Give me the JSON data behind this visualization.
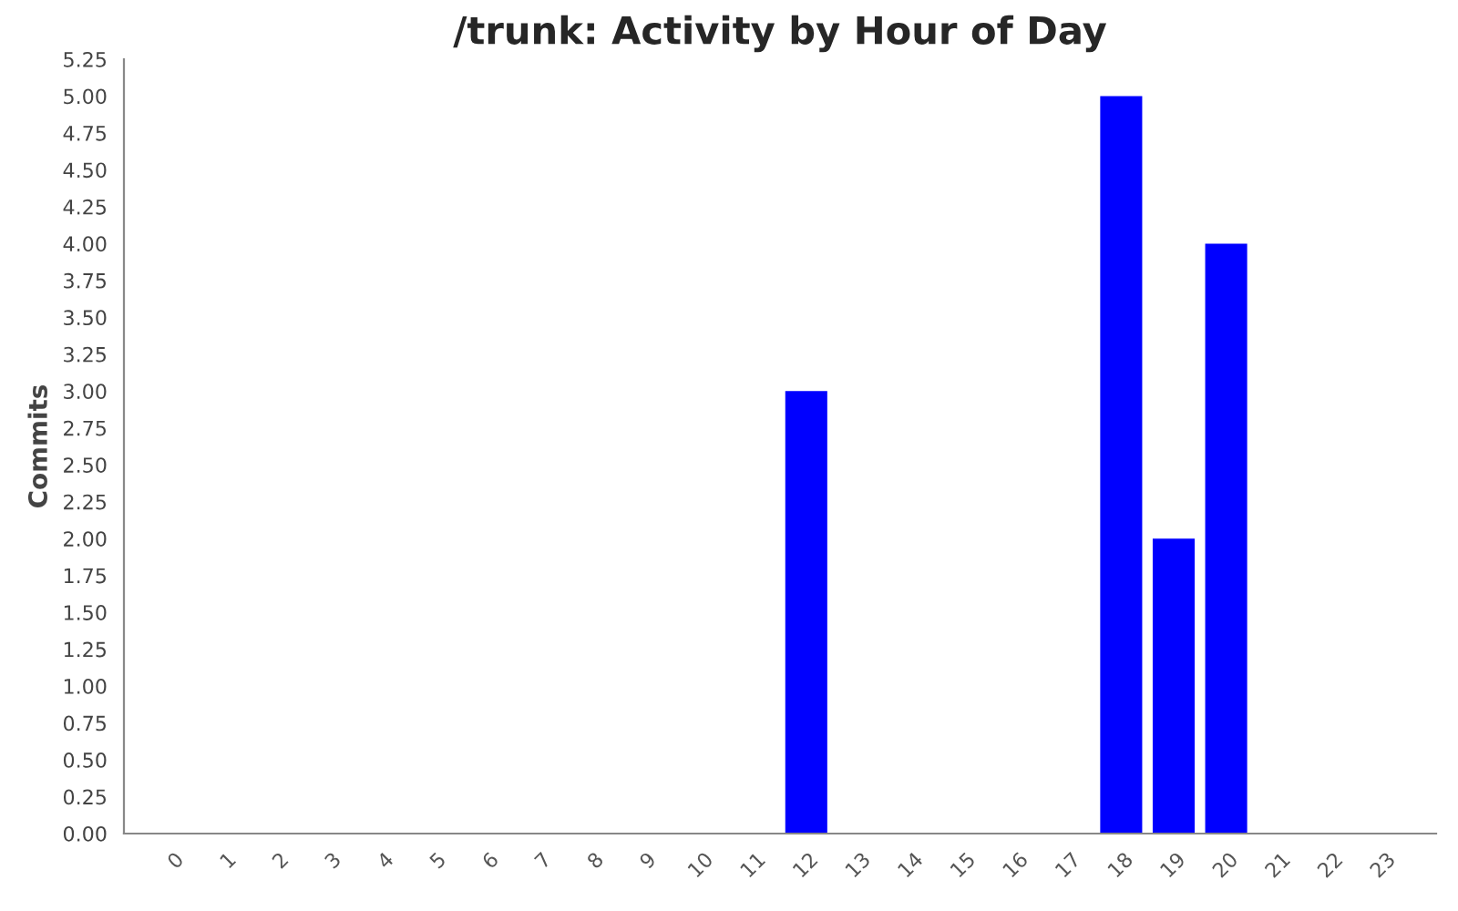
{
  "chart_data": {
    "type": "bar",
    "title": "/trunk: Activity by Hour of Day",
    "ylabel": "Commits",
    "categories": [
      "0",
      "1",
      "2",
      "3",
      "4",
      "5",
      "6",
      "7",
      "8",
      "9",
      "10",
      "11",
      "12",
      "13",
      "14",
      "15",
      "16",
      "17",
      "18",
      "19",
      "20",
      "21",
      "22",
      "23"
    ],
    "values": [
      0,
      0,
      0,
      0,
      0,
      0,
      0,
      0,
      0,
      0,
      0,
      0,
      3,
      0,
      0,
      0,
      0,
      0,
      5,
      2,
      4,
      0,
      0,
      0
    ],
    "color": "#0000ff",
    "ylim": [
      0,
      5.25
    ],
    "yticks": [
      {
        "value": 0,
        "label": "0.00"
      },
      {
        "value": 0.25,
        "label": "0.25"
      },
      {
        "value": 0.5,
        "label": "0.50"
      },
      {
        "value": 0.75,
        "label": "0.75"
      },
      {
        "value": 1,
        "label": "1.00"
      },
      {
        "value": 1.25,
        "label": "1.25"
      },
      {
        "value": 1.5,
        "label": "1.50"
      },
      {
        "value": 1.75,
        "label": "1.75"
      },
      {
        "value": 2,
        "label": "2.00"
      },
      {
        "value": 2.25,
        "label": "2.25"
      },
      {
        "value": 2.5,
        "label": "2.50"
      },
      {
        "value": 2.75,
        "label": "2.75"
      },
      {
        "value": 3,
        "label": "3.00"
      },
      {
        "value": 3.25,
        "label": "3.25"
      },
      {
        "value": 3.5,
        "label": "3.50"
      },
      {
        "value": 3.75,
        "label": "3.75"
      },
      {
        "value": 4,
        "label": "4.00"
      },
      {
        "value": 4.25,
        "label": "4.25"
      },
      {
        "value": 4.5,
        "label": "4.50"
      },
      {
        "value": 4.75,
        "label": "4.75"
      },
      {
        "value": 5,
        "label": "5.00"
      },
      {
        "value": 5.25,
        "label": "5.25"
      }
    ],
    "grid": false,
    "legend": false
  }
}
